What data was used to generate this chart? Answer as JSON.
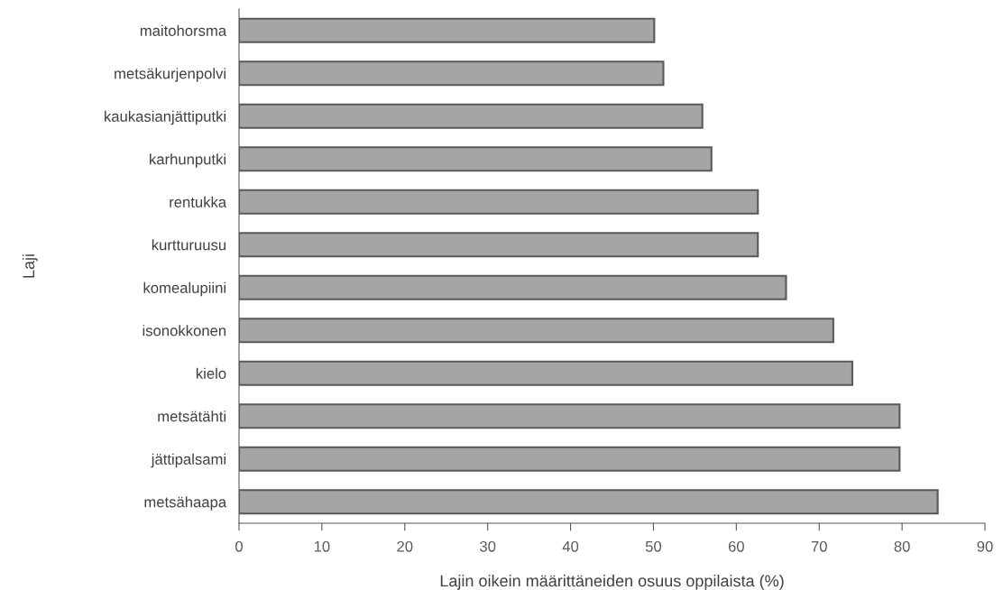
{
  "chart_data": {
    "type": "bar",
    "orientation": "horizontal",
    "xlabel": "Lajin oikein määrittäneiden osuus oppilaista (%)",
    "ylabel": "Laji",
    "categories": [
      "maitohorsma",
      "metsäkurjenpolvi",
      "kaukasianjättiputki",
      "karhunputki",
      "rentukka",
      "kurtturuusu",
      "komealupiini",
      "isonokkonen",
      "kielo",
      "metsätähti",
      "jättipalsami",
      "metsähaapa"
    ],
    "values": [
      50.1,
      51.2,
      55.9,
      57.0,
      62.6,
      62.6,
      66.0,
      71.7,
      74.0,
      79.7,
      79.7,
      84.3
    ],
    "color": "#a5a5a5",
    "xlim": [
      0,
      90
    ],
    "xticks": [
      0,
      10,
      20,
      30,
      40,
      50,
      60,
      70,
      80,
      90
    ],
    "grid": false,
    "legend": false
  }
}
